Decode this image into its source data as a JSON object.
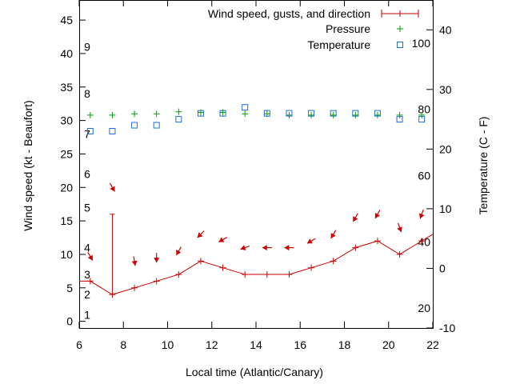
{
  "chart_data": {
    "type": "line",
    "xlabel": "Local time (Atlantic/Canary)",
    "ylabel_left": "Wind speed (kt - Beaufort)",
    "ylabel_right": "Temperature (C - F)",
    "xlim": [
      6,
      22
    ],
    "ylim_left": [
      -1,
      48
    ],
    "ylim_right": [
      -10,
      45
    ],
    "grid": false,
    "legend_position": "top-right",
    "x_ticks": [
      6,
      8,
      10,
      12,
      14,
      16,
      18,
      20,
      22
    ],
    "y_left_ticks": [
      0,
      5,
      10,
      15,
      20,
      25,
      30,
      35,
      40,
      45
    ],
    "y_right_ticks": [
      -10,
      0,
      10,
      20,
      30,
      40
    ],
    "beaufort_labels": [
      {
        "label": "1",
        "kt": 1
      },
      {
        "label": "2",
        "kt": 4
      },
      {
        "label": "3",
        "kt": 7
      },
      {
        "label": "4",
        "kt": 11
      },
      {
        "label": "5",
        "kt": 17
      },
      {
        "label": "6",
        "kt": 22
      },
      {
        "label": "7",
        "kt": 28
      },
      {
        "label": "8",
        "kt": 34
      },
      {
        "label": "9",
        "kt": 41
      }
    ],
    "fahrenheit_labels": [
      {
        "label": "20",
        "c": -6.67
      },
      {
        "label": "40",
        "c": 4.44
      },
      {
        "label": "60",
        "c": 15.56
      },
      {
        "label": "80",
        "c": 26.67
      },
      {
        "label": "100",
        "c": 37.78
      }
    ],
    "series": [
      {
        "name": "Wind speed, gusts, and direction",
        "color": "#cc0000",
        "x": [
          6,
          6.5,
          7.5,
          8.5,
          9.5,
          10.5,
          11.5,
          12.5,
          13.5,
          14.5,
          15.5,
          16.5,
          17.5,
          18.5,
          19.5,
          20.5,
          21.5,
          22
        ],
        "y": [
          6,
          6,
          4,
          5,
          6,
          7,
          9,
          8,
          7,
          7,
          7,
          8,
          9,
          11,
          12,
          10,
          12,
          13
        ],
        "markers_x": [
          6.5,
          7.5,
          8.5,
          9.5,
          10.5,
          11.5,
          12.5,
          13.5,
          14.5,
          15.5,
          16.5,
          17.5,
          18.5,
          19.5,
          20.5,
          21.5
        ],
        "gusts": [
          {
            "x": 7.5,
            "low": 4,
            "high": 16
          }
        ],
        "directions": [
          {
            "x": 6.5,
            "y": 9.7,
            "dir_deg": 330
          },
          {
            "x": 7.5,
            "y": 20,
            "dir_deg": 330
          },
          {
            "x": 8.5,
            "y": 9,
            "dir_deg": 350
          },
          {
            "x": 9.5,
            "y": 9.5,
            "dir_deg": 0
          },
          {
            "x": 10.5,
            "y": 10.5,
            "dir_deg": 30
          },
          {
            "x": 11.5,
            "y": 13,
            "dir_deg": 45
          },
          {
            "x": 12.5,
            "y": 12.2,
            "dir_deg": 60
          },
          {
            "x": 13.5,
            "y": 11,
            "dir_deg": 70
          },
          {
            "x": 14.5,
            "y": 11,
            "dir_deg": 90
          },
          {
            "x": 15.5,
            "y": 11,
            "dir_deg": 90
          },
          {
            "x": 16.5,
            "y": 12,
            "dir_deg": 60
          },
          {
            "x": 17.5,
            "y": 13,
            "dir_deg": 30
          },
          {
            "x": 18.5,
            "y": 15.5,
            "dir_deg": 30
          },
          {
            "x": 19.5,
            "y": 16,
            "dir_deg": 30
          },
          {
            "x": 20.5,
            "y": 14,
            "dir_deg": 340
          },
          {
            "x": 21.5,
            "y": 16,
            "dir_deg": 20
          }
        ]
      },
      {
        "name": "Pressure",
        "color": "#00a000",
        "marker": "plus",
        "x": [
          6.5,
          7.5,
          8.5,
          9.5,
          10.5,
          11.5,
          12.5,
          13.5,
          14.5,
          15.5,
          16.5,
          17.5,
          18.5,
          19.5,
          20.5,
          21.5
        ],
        "y": [
          30.8,
          30.8,
          31.0,
          31.0,
          31.3,
          31.2,
          31.2,
          31.0,
          31.0,
          30.8,
          30.8,
          30.8,
          30.8,
          30.8,
          30.8,
          30.8
        ]
      },
      {
        "name": "Temperature",
        "color": "#1f6fd0",
        "marker": "square",
        "axis": "right",
        "x": [
          6.5,
          7.5,
          8.5,
          9.5,
          10.5,
          11.5,
          12.5,
          13.5,
          14.5,
          15.5,
          16.5,
          17.5,
          18.5,
          19.5,
          20.5,
          21.5
        ],
        "y": [
          23,
          23,
          24,
          24,
          25,
          26,
          26,
          27,
          26,
          26,
          26,
          26,
          26,
          26,
          25,
          25
        ]
      }
    ]
  }
}
